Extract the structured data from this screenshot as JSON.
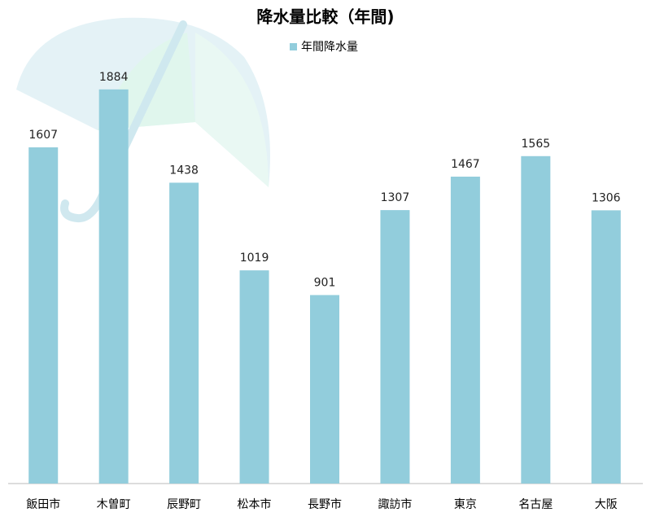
{
  "chart_data": {
    "type": "bar",
    "title": "降水量比較（年間)",
    "categories": [
      "飯田市",
      "木曽町",
      "辰野町",
      "松本市",
      "長野市",
      "諏訪市",
      "東京",
      "名古屋",
      "大阪"
    ],
    "series": [
      {
        "name": "年間降水量",
        "color": "#92cddc",
        "values": [
          1607,
          1884,
          1438,
          1019,
          901,
          1307,
          1467,
          1565,
          1306
        ]
      }
    ],
    "ylim": [
      0,
      2000
    ],
    "legend": "top"
  }
}
